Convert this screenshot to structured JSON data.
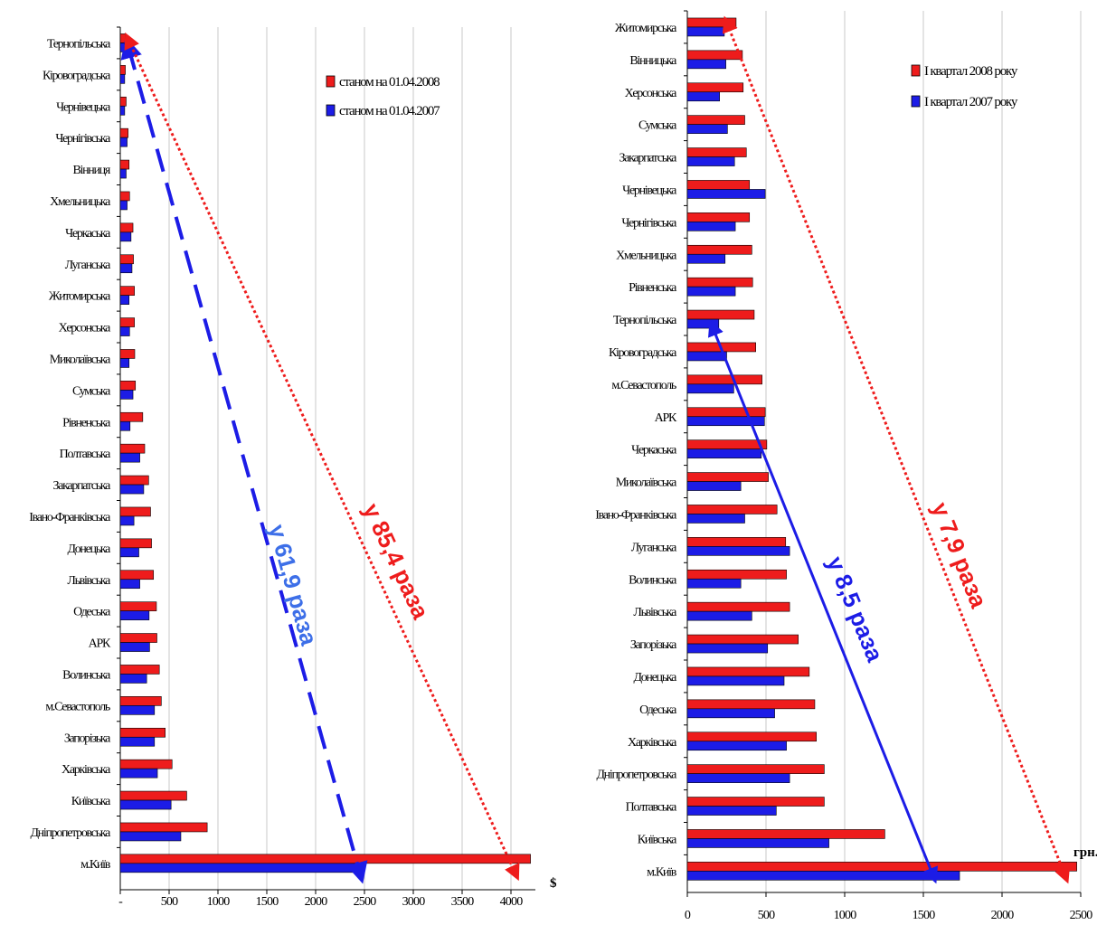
{
  "colors": {
    "series2008": "#ee1c1c",
    "series2007": "#1c1ce6",
    "grid": "#c8c8c8",
    "axis": "#000000",
    "annoBlue": "#1c1ce6",
    "annoLightBlue": "#3d6fe8",
    "annoRed": "#ee1c1c"
  },
  "chart_data": [
    {
      "type": "bar",
      "orientation": "horizontal",
      "categories": [
        "Тернопільська",
        "Кіровоградська",
        "Чернівецька",
        "Чернігівська",
        "Вінниця",
        "Хмельницька",
        "Черкаська",
        "Луганська",
        "Житомирська",
        "Херсонська",
        "Миколаївська",
        "Сумська",
        "Рівненська",
        "Полтавська",
        "Закарпатська",
        "Івано-Франківська",
        "Донецька",
        "Львівська",
        "Одеська",
        "АРК",
        "Волинська",
        "м.Севастополь",
        "Запорізька",
        "Харківська",
        "Київська",
        "Дніпропетровська",
        "м.Київ"
      ],
      "series": [
        {
          "name": "станом на 01.04.2008",
          "color": "#ee1c1c",
          "values": [
            50,
            52,
            60,
            80,
            90,
            95,
            130,
            135,
            145,
            145,
            148,
            155,
            230,
            250,
            290,
            310,
            320,
            340,
            370,
            375,
            400,
            420,
            460,
            530,
            680,
            890,
            4200
          ]
        },
        {
          "name": "станом на 01.04.2007",
          "color": "#1c1ce6",
          "values": [
            40,
            45,
            45,
            70,
            60,
            70,
            110,
            120,
            90,
            95,
            90,
            130,
            100,
            200,
            240,
            140,
            190,
            200,
            295,
            300,
            270,
            350,
            350,
            380,
            520,
            620,
            2450
          ]
        }
      ],
      "xticks": [
        "-",
        "500",
        "1000",
        "1500",
        "2000",
        "2500",
        "3000",
        "3500",
        "4000"
      ],
      "xlim": [
        0,
        4250
      ],
      "unit_label": "$",
      "grid": true,
      "legend_position": "top-right",
      "annotations": [
        "у 61,9 раза",
        "у 85,4 раза"
      ]
    },
    {
      "type": "bar",
      "orientation": "horizontal",
      "categories": [
        "Житомирська",
        "Вінницька",
        "Херсонська",
        "Сумська",
        "Закарпатська",
        "Чернівецька",
        "Чернігівська",
        "Хмельницька",
        "Рівненська",
        "Тернопільська",
        "Кіровоградська",
        "м.Севастополь",
        "АРК",
        "Черкаська",
        "Миколаївська",
        "Івано-Франківська",
        "Луганська",
        "Волинська",
        "Львівська",
        "Запорізька",
        "Донецька",
        "Одеська",
        "Харківська",
        "Дніпропетровська",
        "Полтавська",
        "Київська",
        "м.Київ"
      ],
      "series": [
        {
          "name": "І квартал 2008 року",
          "color": "#ee1c1c",
          "values": [
            310,
            350,
            355,
            365,
            375,
            395,
            395,
            410,
            415,
            425,
            435,
            475,
            495,
            505,
            515,
            570,
            625,
            630,
            650,
            705,
            775,
            810,
            820,
            870,
            870,
            1255,
            2475
          ]
        },
        {
          "name": "І квартал 2007 року",
          "color": "#1c1ce6",
          "values": [
            235,
            245,
            205,
            255,
            300,
            495,
            305,
            240,
            305,
            200,
            250,
            295,
            490,
            470,
            340,
            365,
            650,
            340,
            410,
            510,
            615,
            555,
            630,
            650,
            565,
            900,
            1730
          ]
        }
      ],
      "xticks": [
        "0",
        "500",
        "1000",
        "1500",
        "2000",
        "2500"
      ],
      "xlim": [
        0,
        2500
      ],
      "unit_label": "грн.",
      "grid": true,
      "legend_position": "top-right",
      "annotations": [
        "у 8,5 раза",
        "у 7,9 раза"
      ]
    }
  ]
}
